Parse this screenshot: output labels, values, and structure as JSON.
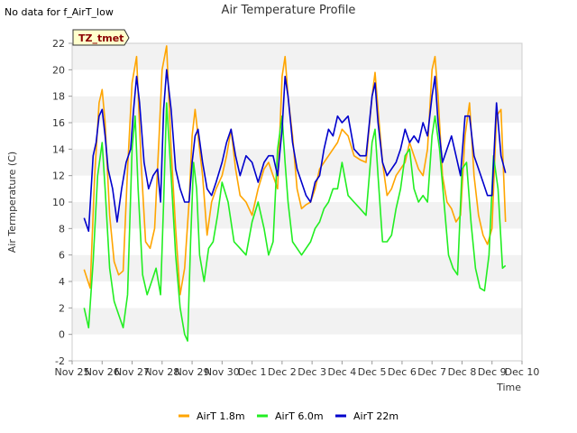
{
  "notice": "No data for f_AirT_low",
  "chart_data": {
    "type": "line",
    "title": "Air Temperature Profile",
    "xlabel": "Time",
    "ylabel": "Air Termperature (C)",
    "ylim": [
      -2,
      22
    ],
    "yticks": [
      -2,
      0,
      2,
      4,
      6,
      8,
      10,
      12,
      14,
      16,
      18,
      20,
      22
    ],
    "xlim": [
      0,
      15
    ],
    "xtick_labels": [
      "Nov 25",
      "Nov 26",
      "Nov 27",
      "Nov 28",
      "Nov 29",
      "Nov 30",
      "Dec 1",
      "Dec 2",
      "Dec 3",
      "Dec 4",
      "Dec 5",
      "Dec 6",
      "Dec 7",
      "Dec 8",
      "Dec 9",
      "Dec 10"
    ],
    "grid": "horizontal alternating bands",
    "legend_position": "bottom-center",
    "annotation": "TZ_tmet",
    "series": [
      {
        "name": "AirT 1.8m",
        "color": "#FFA500",
        "x": [
          0.4,
          0.6,
          0.75,
          0.9,
          1.0,
          1.1,
          1.25,
          1.4,
          1.55,
          1.7,
          1.85,
          2.0,
          2.15,
          2.3,
          2.45,
          2.6,
          2.75,
          2.9,
          3.0,
          3.15,
          3.3,
          3.45,
          3.6,
          3.75,
          3.9,
          4.0,
          4.1,
          4.2,
          4.35,
          4.5,
          4.65,
          4.8,
          5.0,
          5.15,
          5.3,
          5.45,
          5.6,
          5.8,
          6.0,
          6.2,
          6.4,
          6.55,
          6.7,
          6.85,
          7.0,
          7.1,
          7.2,
          7.35,
          7.5,
          7.65,
          7.8,
          7.95,
          8.1,
          8.25,
          8.4,
          8.55,
          8.7,
          8.85,
          9.0,
          9.2,
          9.4,
          9.6,
          9.8,
          10.0,
          10.1,
          10.2,
          10.35,
          10.5,
          10.65,
          10.8,
          10.95,
          11.1,
          11.25,
          11.4,
          11.55,
          11.7,
          11.85,
          12.0,
          12.1,
          12.2,
          12.35,
          12.5,
          12.65,
          12.8,
          12.95,
          13.1,
          13.25,
          13.4,
          13.55,
          13.7,
          13.85,
          14.0,
          14.15,
          14.3,
          14.45
        ],
        "values": [
          4.9,
          3.5,
          12.0,
          17.5,
          18.5,
          16.0,
          9.0,
          5.5,
          4.5,
          4.8,
          12.5,
          19.0,
          21.0,
          13.0,
          7.0,
          6.5,
          8.0,
          15.0,
          20.0,
          21.8,
          14.0,
          8.0,
          3.0,
          5.0,
          10.0,
          15.0,
          17.0,
          15.0,
          12.0,
          7.5,
          10.0,
          11.0,
          12.0,
          13.5,
          15.5,
          12.5,
          10.5,
          10.0,
          9.0,
          11.0,
          12.5,
          13.0,
          12.0,
          11.0,
          19.5,
          21.0,
          18.0,
          15.0,
          11.0,
          9.5,
          9.8,
          10.0,
          11.0,
          12.5,
          13.0,
          13.5,
          14.0,
          14.5,
          15.5,
          15.0,
          13.5,
          13.2,
          13.0,
          18.0,
          19.8,
          17.0,
          13.0,
          10.5,
          11.0,
          12.0,
          12.5,
          13.0,
          14.5,
          13.5,
          12.5,
          12.0,
          14.0,
          20.0,
          21.0,
          18.0,
          12.0,
          10.0,
          9.5,
          8.5,
          9.0,
          15.0,
          17.5,
          12.0,
          9.0,
          7.5,
          6.8,
          8.0,
          16.5,
          17.0,
          8.5
        ]
      },
      {
        "name": "AirT 6.0m",
        "color": "#22EE22",
        "x": [
          0.4,
          0.55,
          0.7,
          0.85,
          1.0,
          1.1,
          1.25,
          1.4,
          1.55,
          1.7,
          1.85,
          2.0,
          2.1,
          2.2,
          2.35,
          2.5,
          2.65,
          2.8,
          2.95,
          3.05,
          3.15,
          3.3,
          3.45,
          3.6,
          3.75,
          3.85,
          3.95,
          4.05,
          4.15,
          4.25,
          4.4,
          4.55,
          4.7,
          4.85,
          5.0,
          5.2,
          5.4,
          5.6,
          5.8,
          6.0,
          6.2,
          6.4,
          6.55,
          6.7,
          6.85,
          7.0,
          7.1,
          7.2,
          7.35,
          7.5,
          7.65,
          7.8,
          7.95,
          8.1,
          8.25,
          8.4,
          8.55,
          8.7,
          8.85,
          9.0,
          9.2,
          9.4,
          9.6,
          9.8,
          10.0,
          10.1,
          10.2,
          10.35,
          10.5,
          10.65,
          10.8,
          10.95,
          11.1,
          11.25,
          11.4,
          11.55,
          11.7,
          11.85,
          12.0,
          12.1,
          12.25,
          12.4,
          12.55,
          12.7,
          12.85,
          13.0,
          13.15,
          13.3,
          13.45,
          13.6,
          13.75,
          13.9,
          14.05,
          14.2,
          14.35,
          14.45
        ],
        "values": [
          2.0,
          0.5,
          5.5,
          12.0,
          14.5,
          11.0,
          5.0,
          2.5,
          1.5,
          0.5,
          3.0,
          14.0,
          16.5,
          11.0,
          4.5,
          3.0,
          4.0,
          5.0,
          3.0,
          10.0,
          17.5,
          12.0,
          6.0,
          2.0,
          0.0,
          -0.5,
          7.0,
          13.0,
          11.0,
          6.0,
          4.0,
          6.5,
          7.0,
          9.0,
          11.5,
          10.0,
          7.0,
          6.5,
          6.0,
          8.5,
          10.0,
          8.0,
          6.0,
          7.0,
          14.0,
          16.5,
          13.0,
          10.0,
          7.0,
          6.5,
          6.0,
          6.5,
          7.0,
          8.0,
          8.5,
          9.5,
          10.0,
          11.0,
          11.0,
          13.0,
          10.5,
          10.0,
          9.5,
          9.0,
          14.5,
          15.5,
          12.0,
          7.0,
          7.0,
          7.5,
          9.5,
          11.0,
          13.5,
          14.0,
          11.0,
          10.0,
          10.5,
          10.0,
          15.0,
          16.5,
          14.0,
          10.0,
          6.0,
          5.0,
          4.5,
          12.5,
          13.0,
          8.5,
          5.0,
          3.5,
          3.3,
          6.0,
          13.5,
          11.0,
          5.0,
          5.2
        ]
      },
      {
        "name": "AirT 22m",
        "color": "#0000CC",
        "x": [
          0.4,
          0.55,
          0.7,
          0.8,
          0.9,
          1.0,
          1.1,
          1.2,
          1.35,
          1.5,
          1.65,
          1.8,
          1.95,
          2.05,
          2.15,
          2.25,
          2.4,
          2.55,
          2.7,
          2.85,
          2.95,
          3.05,
          3.15,
          3.3,
          3.45,
          3.6,
          3.75,
          3.9,
          4.0,
          4.1,
          4.2,
          4.35,
          4.5,
          4.65,
          4.8,
          5.0,
          5.15,
          5.3,
          5.45,
          5.6,
          5.8,
          6.0,
          6.2,
          6.4,
          6.55,
          6.7,
          6.85,
          7.0,
          7.1,
          7.2,
          7.35,
          7.5,
          7.65,
          7.8,
          7.95,
          8.1,
          8.25,
          8.4,
          8.55,
          8.7,
          8.85,
          9.0,
          9.2,
          9.4,
          9.6,
          9.8,
          10.0,
          10.1,
          10.2,
          10.35,
          10.5,
          10.65,
          10.8,
          10.95,
          11.1,
          11.25,
          11.4,
          11.55,
          11.7,
          11.85,
          12.0,
          12.1,
          12.2,
          12.35,
          12.5,
          12.65,
          12.8,
          12.95,
          13.1,
          13.25,
          13.4,
          13.55,
          13.7,
          13.85,
          14.0,
          14.15,
          14.3,
          14.45
        ],
        "values": [
          8.8,
          7.8,
          13.5,
          14.5,
          16.5,
          17.0,
          15.0,
          12.5,
          11.0,
          8.5,
          11.0,
          13.0,
          14.0,
          17.0,
          19.5,
          17.5,
          13.0,
          11.0,
          12.0,
          12.5,
          10.0,
          17.0,
          20.0,
          17.0,
          12.5,
          11.0,
          10.0,
          10.0,
          13.0,
          15.0,
          15.5,
          13.0,
          11.0,
          10.5,
          11.5,
          13.0,
          14.5,
          15.5,
          13.5,
          12.0,
          13.5,
          13.0,
          11.5,
          13.0,
          13.5,
          13.5,
          12.0,
          15.5,
          19.5,
          18.0,
          14.5,
          12.5,
          11.5,
          10.5,
          10.0,
          11.5,
          12.0,
          14.0,
          15.5,
          15.0,
          16.5,
          16.0,
          16.5,
          14.0,
          13.5,
          13.5,
          18.0,
          19.0,
          16.0,
          13.0,
          12.0,
          12.5,
          13.0,
          14.0,
          15.5,
          14.5,
          15.0,
          14.5,
          16.0,
          15.0,
          18.0,
          19.5,
          16.0,
          13.0,
          14.0,
          15.0,
          13.5,
          12.0,
          16.5,
          16.5,
          13.5,
          12.5,
          11.5,
          10.5,
          10.5,
          17.5,
          13.5,
          12.2
        ]
      }
    ]
  }
}
